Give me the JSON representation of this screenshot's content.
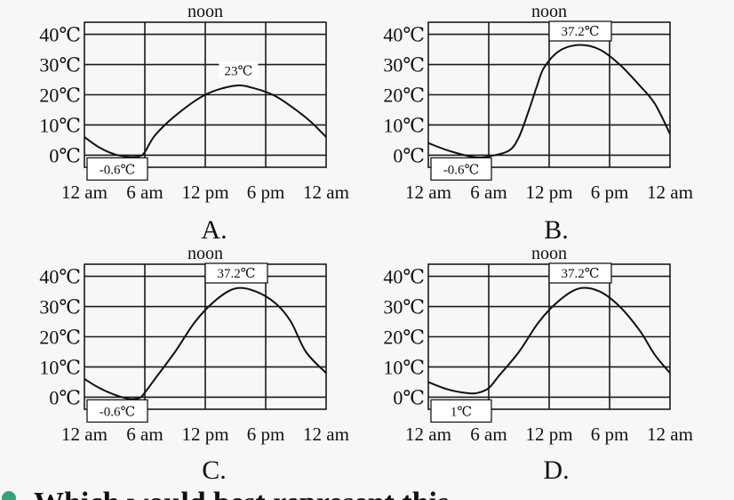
{
  "chart_data": [
    {
      "type": "line",
      "label": "A.",
      "top_label": "noon",
      "x_ticks": [
        "12 am",
        "6 am",
        "12 pm",
        "6 pm",
        "12 am"
      ],
      "y_ticks": [
        "40℃",
        "30℃",
        "20℃",
        "10℃",
        "0℃"
      ],
      "x_range_hours": [
        0,
        24
      ],
      "ylim": [
        -4,
        44
      ],
      "grid": true,
      "min_annotation": "-0.6℃",
      "max_annotation": "23℃",
      "series": [
        {
          "x": [
            0,
            1.5,
            3,
            4.5,
            5.5,
            6,
            7,
            9,
            12,
            15,
            17,
            19,
            21,
            22.5,
            24
          ],
          "y": [
            6,
            2.5,
            0.3,
            -0.6,
            -0.3,
            1,
            6.5,
            13,
            20,
            23,
            22,
            19.5,
            15,
            11,
            6
          ]
        }
      ]
    },
    {
      "type": "line",
      "label": "B.",
      "top_label": "noon",
      "x_ticks": [
        "12 am",
        "6 am",
        "12 pm",
        "6 pm",
        "12 am"
      ],
      "y_ticks": [
        "40℃",
        "30℃",
        "20℃",
        "10℃",
        "0℃"
      ],
      "x_range_hours": [
        0,
        24
      ],
      "ylim": [
        -4,
        44
      ],
      "grid": true,
      "min_annotation": "-0.6℃",
      "max_annotation": "37.2℃",
      "series": [
        {
          "x": [
            0,
            2,
            4.5,
            6,
            8,
            9,
            10,
            10.8,
            11.5,
            13,
            15,
            17,
            19,
            21,
            22.5,
            24
          ],
          "y": [
            4,
            1.5,
            -0.6,
            -0.4,
            1.5,
            6,
            15,
            23,
            29,
            34.5,
            36.5,
            35,
            30,
            23,
            17,
            7
          ]
        }
      ]
    },
    {
      "type": "line",
      "label": "C.",
      "top_label": "noon",
      "x_ticks": [
        "12 am",
        "6 am",
        "12 pm",
        "6 pm",
        "12 am"
      ],
      "y_ticks": [
        "40℃",
        "30℃",
        "20℃",
        "10℃",
        "0℃"
      ],
      "x_range_hours": [
        0,
        24
      ],
      "ylim": [
        -4,
        44
      ],
      "grid": true,
      "min_annotation": "-0.6℃",
      "max_annotation": "37.2℃",
      "series": [
        {
          "x": [
            0,
            1.5,
            3,
            4.5,
            5.5,
            6,
            7,
            9,
            11,
            13,
            15,
            17,
            19,
            20.5,
            22,
            24
          ],
          "y": [
            6,
            3,
            0.8,
            -0.6,
            -0.2,
            1.5,
            6,
            15,
            25,
            32,
            36,
            35,
            31,
            25,
            15,
            8
          ]
        }
      ]
    },
    {
      "type": "line",
      "label": "D.",
      "top_label": "noon",
      "x_ticks": [
        "12 am",
        "6 am",
        "12 pm",
        "6 pm",
        "12 am"
      ],
      "y_ticks": [
        "40℃",
        "30℃",
        "20℃",
        "10℃",
        "0℃"
      ],
      "x_range_hours": [
        0,
        24
      ],
      "ylim": [
        -4,
        44
      ],
      "grid": true,
      "min_annotation": "1℃",
      "max_annotation": "37.2℃",
      "series": [
        {
          "x": [
            0,
            2,
            4,
            5,
            6,
            7,
            9,
            11,
            13,
            15,
            17,
            19,
            21,
            22.5,
            24
          ],
          "y": [
            5,
            2.5,
            1.3,
            1.5,
            3,
            7,
            15,
            25,
            32,
            36,
            35,
            30,
            22,
            14,
            8
          ]
        }
      ]
    }
  ],
  "question": {
    "text": "Which would best represent this"
  }
}
